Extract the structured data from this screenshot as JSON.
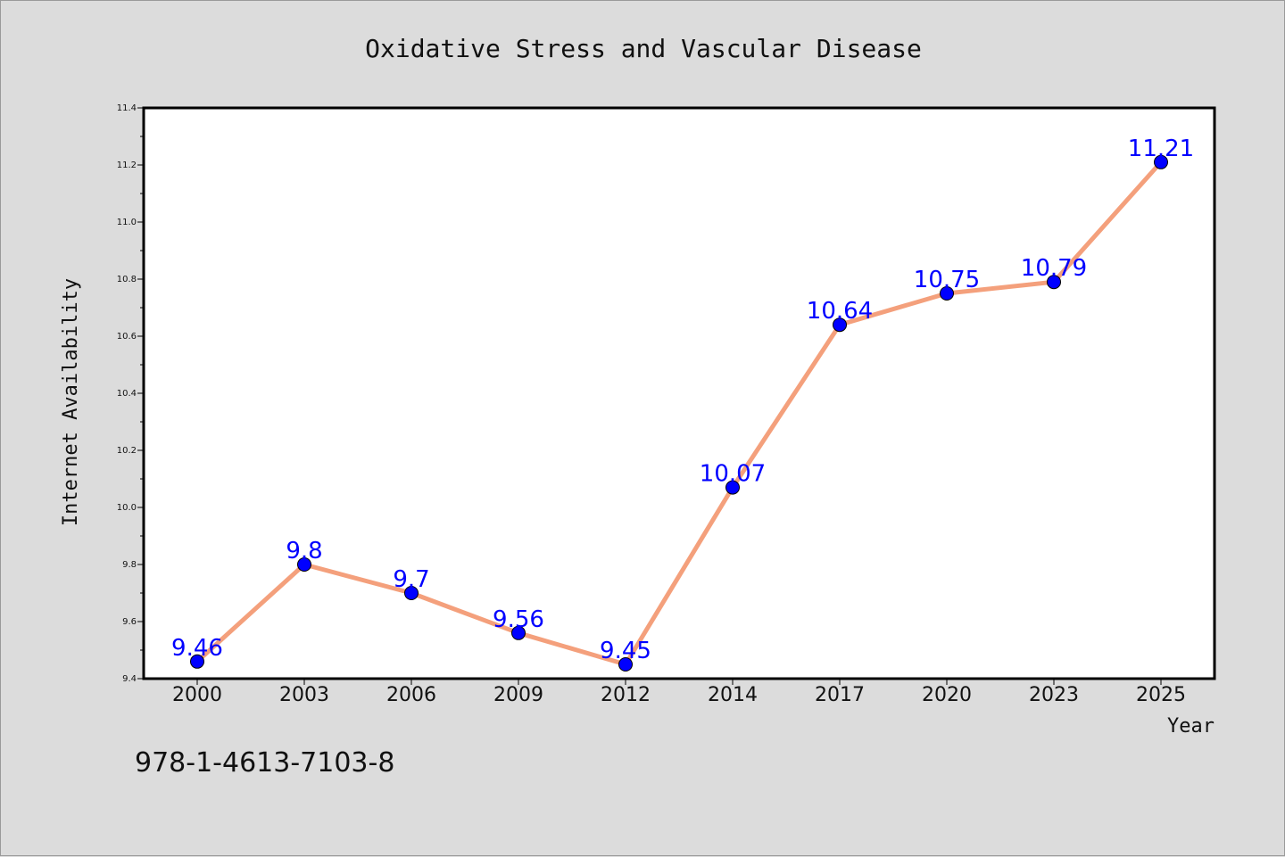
{
  "chart_data": {
    "type": "line",
    "title": "Oxidative Stress and Vascular Disease",
    "xlabel": "Year",
    "ylabel": "Internet Availability",
    "categories": [
      "2000",
      "2003",
      "2006",
      "2009",
      "2012",
      "2014",
      "2017",
      "2020",
      "2023",
      "2025"
    ],
    "series": [
      {
        "values": [
          9.46,
          9.8,
          9.7,
          9.56,
          9.45,
          10.07,
          10.64,
          10.75,
          10.79,
          11.21
        ],
        "data_labels": [
          "9.46",
          "9.8",
          "9.7",
          "9.56",
          "9.45",
          "10.07",
          "10.64",
          "10.75",
          "10.79",
          "11.21"
        ],
        "line_color": "#f4a07c",
        "marker_color": "#0000ff"
      }
    ],
    "ylim": [
      9.4,
      11.4
    ],
    "yticks": [
      9.4,
      9.6,
      9.8,
      10.0,
      10.2,
      10.4,
      10.6,
      10.8,
      11.0,
      11.2,
      11.4
    ],
    "ytick_labels": [
      "9.4",
      "9.6",
      "9.8",
      "10.0",
      "10.2",
      "10.4",
      "10.6",
      "10.8",
      "11.0",
      "11.2",
      "11.4"
    ],
    "grid": false,
    "legend": "none"
  },
  "annotation": "978-1-4613-7103-8",
  "colors": {
    "background": "#dcdcdc",
    "plot_area": "#ffffff",
    "data_label": "#0000ff"
  }
}
